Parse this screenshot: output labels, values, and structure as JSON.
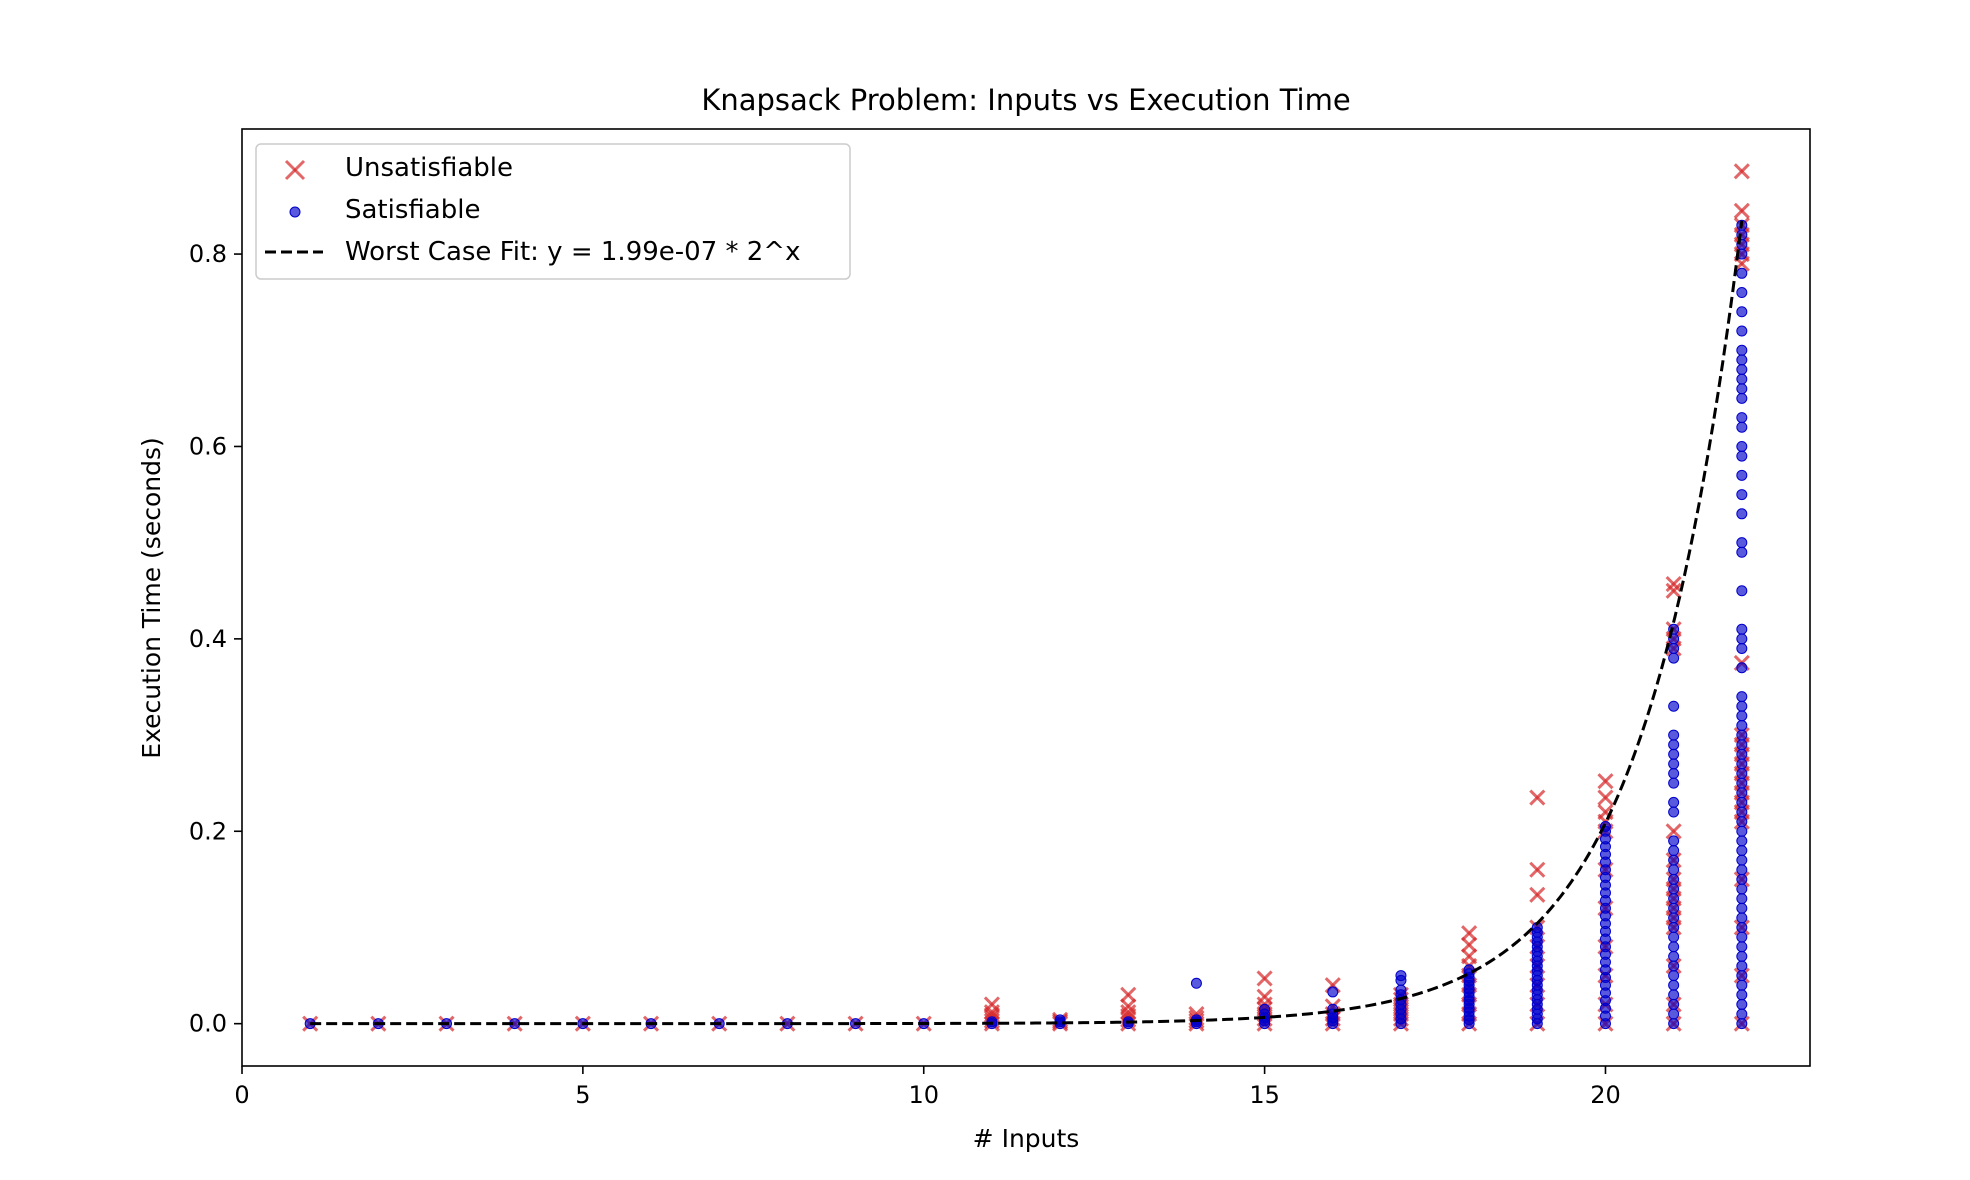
{
  "chart_data": {
    "type": "scatter",
    "title": "Knapsack Problem: Inputs vs Execution Time",
    "xlabel": "# Inputs",
    "ylabel": "Execution Time (seconds)",
    "xlim": [
      0,
      23
    ],
    "ylim": [
      -0.044,
      0.93
    ],
    "xticks": [
      0,
      5,
      10,
      15,
      20
    ],
    "yticks": [
      0.0,
      0.2,
      0.4,
      0.6,
      0.8
    ],
    "xtick_labels": [
      "0",
      "5",
      "10",
      "15",
      "20"
    ],
    "ytick_labels": [
      "0.0",
      "0.2",
      "0.4",
      "0.6",
      "0.8"
    ],
    "grid": false,
    "legend_position": "top-left",
    "series": [
      {
        "name": "Unsatisfiable",
        "marker": "x",
        "color": "#d62728",
        "points": [
          {
            "x": 1,
            "y": [
              0.0
            ]
          },
          {
            "x": 2,
            "y": [
              0.0
            ]
          },
          {
            "x": 3,
            "y": [
              0.0
            ]
          },
          {
            "x": 4,
            "y": [
              0.0
            ]
          },
          {
            "x": 5,
            "y": [
              0.0
            ]
          },
          {
            "x": 6,
            "y": [
              0.0
            ]
          },
          {
            "x": 7,
            "y": [
              0.0
            ]
          },
          {
            "x": 8,
            "y": [
              0.0
            ]
          },
          {
            "x": 9,
            "y": [
              0.0
            ]
          },
          {
            "x": 10,
            "y": [
              0.0
            ]
          },
          {
            "x": 11,
            "y": [
              0.0,
              0.003,
              0.006,
              0.009,
              0.012,
              0.02
            ]
          },
          {
            "x": 12,
            "y": [
              0.0,
              0.002,
              0.004
            ]
          },
          {
            "x": 13,
            "y": [
              0.0,
              0.004,
              0.008,
              0.012,
              0.018,
              0.03
            ]
          },
          {
            "x": 14,
            "y": [
              0.0,
              0.003,
              0.006,
              0.01
            ]
          },
          {
            "x": 15,
            "y": [
              0.0,
              0.005,
              0.01,
              0.015,
              0.02,
              0.028,
              0.047
            ]
          },
          {
            "x": 16,
            "y": [
              0.0,
              0.005,
              0.01,
              0.018,
              0.04
            ]
          },
          {
            "x": 17,
            "y": [
              0.0,
              0.005,
              0.01,
              0.015,
              0.02,
              0.025,
              0.03
            ]
          },
          {
            "x": 18,
            "y": [
              0.0,
              0.01,
              0.02,
              0.03,
              0.04,
              0.05,
              0.06,
              0.07,
              0.082,
              0.094
            ]
          },
          {
            "x": 19,
            "y": [
              0.0,
              0.02,
              0.04,
              0.06,
              0.08,
              0.1,
              0.134,
              0.16,
              0.235
            ]
          },
          {
            "x": 20,
            "y": [
              0.0,
              0.02,
              0.05,
              0.08,
              0.12,
              0.16,
              0.2,
              0.21,
              0.22,
              0.235,
              0.252
            ]
          },
          {
            "x": 21,
            "y": [
              0.0,
              0.02,
              0.06,
              0.1,
              0.11,
              0.12,
              0.13,
              0.14,
              0.15,
              0.17,
              0.2,
              0.39,
              0.4,
              0.41,
              0.45,
              0.457
            ]
          },
          {
            "x": 22,
            "y": [
              0.0,
              0.05,
              0.1,
              0.15,
              0.21,
              0.22,
              0.23,
              0.24,
              0.25,
              0.26,
              0.27,
              0.28,
              0.29,
              0.3,
              0.375,
              0.79,
              0.8,
              0.81,
              0.82,
              0.83,
              0.845,
              0.886
            ]
          }
        ]
      },
      {
        "name": "Satisfiable",
        "marker": "o",
        "color": "#0000cc",
        "points": [
          {
            "x": 1,
            "y": [
              0.0
            ]
          },
          {
            "x": 2,
            "y": [
              0.0
            ]
          },
          {
            "x": 3,
            "y": [
              0.0
            ]
          },
          {
            "x": 4,
            "y": [
              0.0
            ]
          },
          {
            "x": 5,
            "y": [
              0.0
            ]
          },
          {
            "x": 6,
            "y": [
              0.0
            ]
          },
          {
            "x": 7,
            "y": [
              0.0
            ]
          },
          {
            "x": 8,
            "y": [
              0.0
            ]
          },
          {
            "x": 9,
            "y": [
              0.0
            ]
          },
          {
            "x": 10,
            "y": [
              0.0
            ]
          },
          {
            "x": 11,
            "y": [
              0.0,
              0.002
            ]
          },
          {
            "x": 12,
            "y": [
              0.0,
              0.002,
              0.004
            ]
          },
          {
            "x": 13,
            "y": [
              0.0,
              0.002
            ]
          },
          {
            "x": 14,
            "y": [
              0.0,
              0.002,
              0.004,
              0.042
            ]
          },
          {
            "x": 15,
            "y": [
              0.0,
              0.003,
              0.006,
              0.01,
              0.015
            ]
          },
          {
            "x": 16,
            "y": [
              0.0,
              0.003,
              0.006,
              0.01,
              0.015,
              0.033
            ]
          },
          {
            "x": 17,
            "y": [
              0.0,
              0.005,
              0.01,
              0.015,
              0.02,
              0.025,
              0.03,
              0.035,
              0.045,
              0.05
            ]
          },
          {
            "x": 18,
            "y": [
              0.0,
              0.004,
              0.008,
              0.012,
              0.016,
              0.02,
              0.024,
              0.028,
              0.032,
              0.036,
              0.04,
              0.044,
              0.048,
              0.052,
              0.056
            ]
          },
          {
            "x": 19,
            "y": [
              0.0,
              0.005,
              0.01,
              0.015,
              0.02,
              0.025,
              0.03,
              0.035,
              0.04,
              0.045,
              0.05,
              0.055,
              0.06,
              0.065,
              0.07,
              0.075,
              0.08,
              0.085,
              0.09,
              0.095,
              0.1
            ]
          },
          {
            "x": 20,
            "y": [
              0.0,
              0.008,
              0.016,
              0.024,
              0.032,
              0.04,
              0.048,
              0.056,
              0.064,
              0.072,
              0.08,
              0.088,
              0.096,
              0.104,
              0.112,
              0.12,
              0.128,
              0.136,
              0.144,
              0.152,
              0.16,
              0.168,
              0.176,
              0.184,
              0.192,
              0.2,
              0.205
            ]
          },
          {
            "x": 21,
            "y": [
              0.0,
              0.01,
              0.02,
              0.03,
              0.04,
              0.05,
              0.06,
              0.07,
              0.08,
              0.09,
              0.1,
              0.11,
              0.12,
              0.13,
              0.14,
              0.15,
              0.16,
              0.17,
              0.18,
              0.19,
              0.22,
              0.23,
              0.25,
              0.26,
              0.27,
              0.28,
              0.29,
              0.3,
              0.33,
              0.38,
              0.39,
              0.4,
              0.41
            ]
          },
          {
            "x": 22,
            "y": [
              0.0,
              0.01,
              0.02,
              0.03,
              0.04,
              0.05,
              0.06,
              0.07,
              0.08,
              0.09,
              0.1,
              0.11,
              0.12,
              0.13,
              0.14,
              0.15,
              0.16,
              0.17,
              0.18,
              0.19,
              0.2,
              0.21,
              0.22,
              0.23,
              0.24,
              0.25,
              0.26,
              0.27,
              0.28,
              0.29,
              0.3,
              0.31,
              0.32,
              0.33,
              0.34,
              0.37,
              0.39,
              0.4,
              0.41,
              0.45,
              0.49,
              0.5,
              0.53,
              0.55,
              0.57,
              0.59,
              0.6,
              0.62,
              0.63,
              0.65,
              0.66,
              0.67,
              0.68,
              0.69,
              0.7,
              0.72,
              0.74,
              0.76,
              0.78,
              0.8,
              0.81,
              0.82,
              0.83
            ]
          }
        ]
      },
      {
        "name": "Worst Case Fit: y = 1.99e-07 * 2^x",
        "type": "line",
        "style": "dashed",
        "color": "#000000",
        "formula": {
          "a": 1.99e-07,
          "base": 2
        },
        "x_range": [
          1,
          22
        ]
      }
    ]
  }
}
